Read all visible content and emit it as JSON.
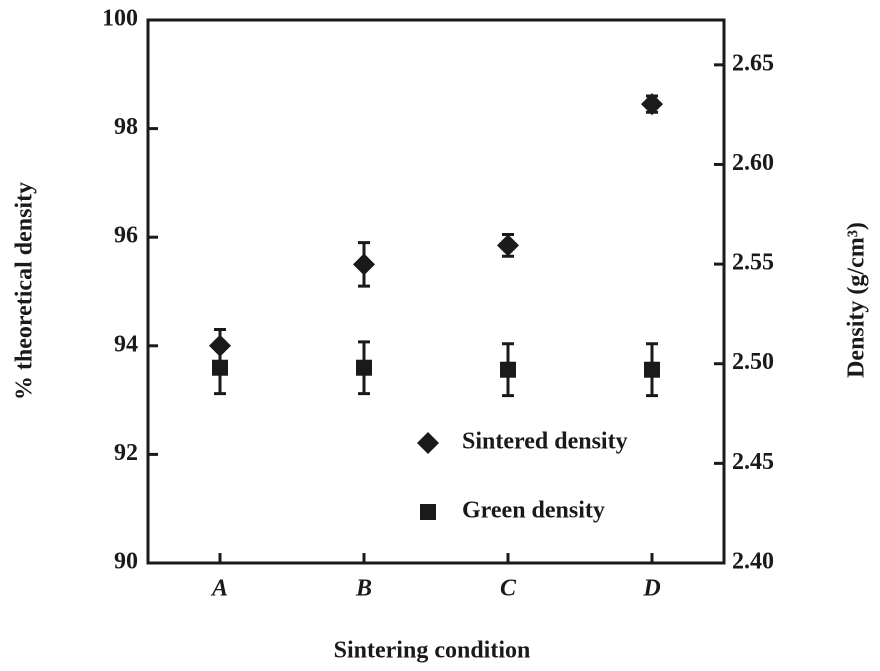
{
  "chart_data": {
    "type": "scatter",
    "xlabel": "Sintering condition",
    "ylabel": "% theoretical density",
    "y2label": "Density (g/cm³)",
    "categories": [
      "A",
      "B",
      "C",
      "D"
    ],
    "series": [
      {
        "name": "Sintered density",
        "color": "#1a1a1a",
        "marker": "diamond",
        "values": [
          94.0,
          95.5,
          95.85,
          98.45
        ],
        "errors": [
          0.3,
          0.4,
          0.2,
          0.15
        ]
      },
      {
        "name": "Green density",
        "color": "#1a1a1a",
        "marker": "square",
        "axis": "y2",
        "values": [
          2.498,
          2.498,
          2.497,
          2.497
        ],
        "errors": [
          0.013,
          0.013,
          0.013,
          0.013
        ]
      }
    ],
    "ylim": [
      90,
      100
    ],
    "yticks": [
      90,
      92,
      94,
      96,
      98,
      100
    ],
    "y2lim": [
      2.4,
      2.6725
    ],
    "y2ticks": [
      {
        "value": 2.4,
        "label": "2.40"
      },
      {
        "value": 2.45,
        "label": "2.45"
      },
      {
        "value": 2.5,
        "label": "2.50"
      },
      {
        "value": 2.55,
        "label": "2.55"
      },
      {
        "value": 2.6,
        "label": "2.60"
      },
      {
        "value": 2.65,
        "label": "2.65"
      }
    ],
    "legend": "lower right"
  }
}
